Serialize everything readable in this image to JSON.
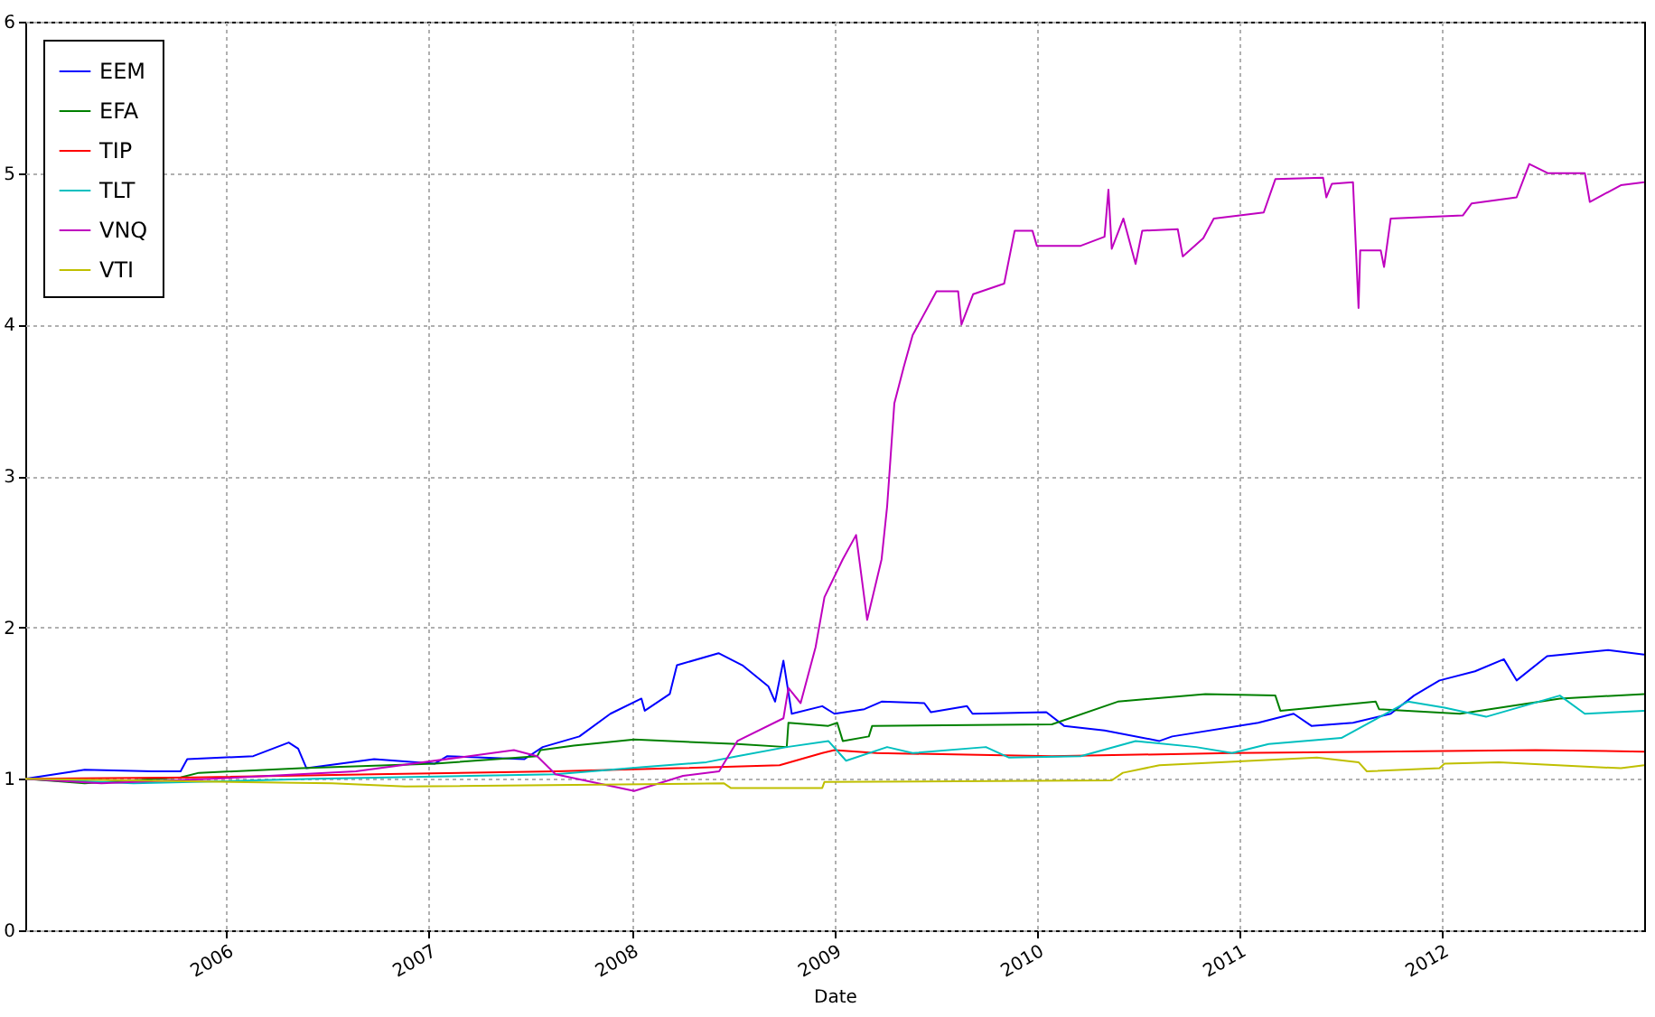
{
  "chart_data": {
    "type": "line",
    "xlabel": "Date",
    "xlim": [
      "2005-01-03",
      "2012-12-31"
    ],
    "xticks": [
      "2006",
      "2007",
      "2008",
      "2009",
      "2010",
      "2011",
      "2012"
    ],
    "ylim": [
      0,
      6
    ],
    "yticks": [
      0,
      1,
      2,
      3,
      4,
      5,
      6
    ],
    "grid": true,
    "legend": "top left",
    "line_style": "solid",
    "series": [
      {
        "name": "EEM",
        "color": "#0000ff",
        "x": [
          "2005-01-03",
          "2005-04-20",
          "2005-08-20",
          "2005-10-10",
          "2005-10-22",
          "2006-02-18",
          "2006-04-23",
          "2006-05-10",
          "2006-05-25",
          "2006-09-24",
          "2007-01-11",
          "2007-02-03",
          "2007-06-22",
          "2007-07-25",
          "2007-09-29",
          "2007-11-24",
          "2008-01-19",
          "2008-01-25",
          "2008-03-10",
          "2008-03-23",
          "2008-06-06",
          "2008-07-19",
          "2008-09-04",
          "2008-09-16",
          "2008-10-01",
          "2008-10-16",
          "2008-12-10",
          "2009-01-01",
          "2009-02-24",
          "2009-03-27",
          "2009-06-12",
          "2009-06-24",
          "2009-08-28",
          "2009-09-07",
          "2010-01-18",
          "2010-02-19",
          "2010-05-03",
          "2010-08-10",
          "2010-09-02",
          "2011-02-04",
          "2011-04-09",
          "2011-05-11",
          "2011-07-25",
          "2011-10-01",
          "2011-11-12",
          "2011-12-28",
          "2012-03-01",
          "2012-04-22",
          "2012-05-15",
          "2012-07-09",
          "2012-10-27",
          "2012-12-31"
        ],
        "values": [
          1.0,
          1.06,
          1.05,
          1.05,
          1.13,
          1.15,
          1.24,
          1.2,
          1.07,
          1.13,
          1.1,
          1.15,
          1.13,
          1.21,
          1.28,
          1.43,
          1.53,
          1.45,
          1.56,
          1.75,
          1.83,
          1.75,
          1.61,
          1.51,
          1.78,
          1.43,
          1.48,
          1.43,
          1.46,
          1.51,
          1.5,
          1.44,
          1.48,
          1.43,
          1.44,
          1.35,
          1.32,
          1.25,
          1.28,
          1.37,
          1.43,
          1.35,
          1.37,
          1.43,
          1.55,
          1.65,
          1.71,
          1.79,
          1.65,
          1.81,
          1.85,
          1.82
        ]
      },
      {
        "name": "EFA",
        "color": "#008000",
        "x": [
          "2005-01-03",
          "2005-04-20",
          "2005-10-10",
          "2005-11-12",
          "2006-05-16",
          "2007-01-11",
          "2007-07-15",
          "2007-07-21",
          "2007-09-19",
          "2008-01-06",
          "2008-07-10",
          "2008-10-07",
          "2008-10-10",
          "2008-12-21",
          "2009-01-06",
          "2009-01-16",
          "2009-03-04",
          "2009-03-10",
          "2010-01-28",
          "2010-05-27",
          "2010-11-01",
          "2011-03-07",
          "2011-03-16",
          "2011-09-04",
          "2011-09-10",
          "2012-02-03",
          "2012-08-01",
          "2012-12-31"
        ],
        "values": [
          1.0,
          0.97,
          1.01,
          1.04,
          1.07,
          1.1,
          1.15,
          1.19,
          1.22,
          1.26,
          1.23,
          1.21,
          1.37,
          1.35,
          1.37,
          1.25,
          1.28,
          1.35,
          1.36,
          1.51,
          1.56,
          1.55,
          1.45,
          1.51,
          1.46,
          1.43,
          1.53,
          1.56
        ]
      },
      {
        "name": "TIP",
        "color": "#ff0000",
        "x": [
          "2005-01-03",
          "2005-11-04",
          "2006-09-24",
          "2007-08-17",
          "2008-03-23",
          "2008-09-24",
          "2008-12-10",
          "2009-01-01",
          "2009-03-18",
          "2010-01-28",
          "2010-12-19",
          "2012-06-18",
          "2012-12-31"
        ],
        "values": [
          1.0,
          1.01,
          1.03,
          1.05,
          1.07,
          1.09,
          1.17,
          1.19,
          1.17,
          1.15,
          1.17,
          1.19,
          1.18
        ]
      },
      {
        "name": "TLT",
        "color": "#00bfbf",
        "x": [
          "2005-01-03",
          "2005-07-17",
          "2006-06-09",
          "2007-08-17",
          "2008-01-28",
          "2008-05-15",
          "2008-07-10",
          "2008-10-07",
          "2008-12-21",
          "2009-01-22",
          "2009-04-06",
          "2009-05-22",
          "2009-10-01",
          "2009-11-12",
          "2010-03-21",
          "2010-06-28",
          "2010-10-15",
          "2010-12-19",
          "2011-02-23",
          "2011-07-04",
          "2011-11-01",
          "2012-01-06",
          "2012-03-21",
          "2012-08-01",
          "2012-09-15",
          "2012-12-31"
        ],
        "values": [
          1.0,
          0.97,
          1.0,
          1.03,
          1.08,
          1.11,
          1.15,
          1.21,
          1.25,
          1.12,
          1.21,
          1.17,
          1.21,
          1.14,
          1.15,
          1.25,
          1.21,
          1.17,
          1.23,
          1.27,
          1.51,
          1.47,
          1.41,
          1.55,
          1.43,
          1.45
        ]
      },
      {
        "name": "VNQ",
        "color": "#bf00bf",
        "x": [
          "2005-01-03",
          "2005-05-20",
          "2005-12-05",
          "2006-08-22",
          "2007-06-03",
          "2007-07-15",
          "2007-08-17",
          "2008-01-06",
          "2008-04-03",
          "2008-06-07",
          "2008-07-10",
          "2008-10-01",
          "2008-10-10",
          "2008-11-01",
          "2008-11-28",
          "2008-12-14",
          "2009-01-16",
          "2009-02-09",
          "2009-03-01",
          "2009-03-27",
          "2009-04-06",
          "2009-04-19",
          "2009-05-06",
          "2009-05-22",
          "2009-07-04",
          "2009-08-12",
          "2009-08-18",
          "2009-09-08",
          "2009-11-03",
          "2009-11-22",
          "2009-12-24",
          "2010-01-01",
          "2010-03-21",
          "2010-05-03",
          "2010-05-10",
          "2010-05-16",
          "2010-06-06",
          "2010-06-28",
          "2010-07-10",
          "2010-09-12",
          "2010-09-21",
          "2010-10-28",
          "2010-11-16",
          "2011-02-14",
          "2011-03-07",
          "2011-06-01",
          "2011-06-07",
          "2011-06-17",
          "2011-07-25",
          "2011-08-04",
          "2011-08-07",
          "2011-09-13",
          "2011-09-19",
          "2011-10-01",
          "2012-02-08",
          "2012-02-24",
          "2012-05-15",
          "2012-06-07",
          "2012-07-10",
          "2012-09-15",
          "2012-09-24",
          "2012-11-19",
          "2012-12-31"
        ],
        "values": [
          1.0,
          0.97,
          1.0,
          1.05,
          1.19,
          1.15,
          1.03,
          0.92,
          1.02,
          1.05,
          1.25,
          1.4,
          1.6,
          1.5,
          1.87,
          2.2,
          2.45,
          2.61,
          2.05,
          2.45,
          2.8,
          3.48,
          3.72,
          3.93,
          4.22,
          4.22,
          4.0,
          4.2,
          4.27,
          4.62,
          4.62,
          4.52,
          4.52,
          4.58,
          4.89,
          4.5,
          4.7,
          4.4,
          4.62,
          4.63,
          4.45,
          4.57,
          4.7,
          4.74,
          4.96,
          4.97,
          4.84,
          4.93,
          4.94,
          4.11,
          4.49,
          4.49,
          4.38,
          4.7,
          4.72,
          4.8,
          4.84,
          5.06,
          5.0,
          5.0,
          4.81,
          4.92,
          4.94
        ]
      },
      {
        "name": "VTI",
        "color": "#bfbf00",
        "x": [
          "2005-01-03",
          "2006-07-10",
          "2006-11-19",
          "2008-06-16",
          "2008-06-28",
          "2008-12-10",
          "2008-12-14",
          "2010-05-16",
          "2010-06-05",
          "2010-08-10",
          "2011-05-21",
          "2011-08-04",
          "2011-08-19",
          "2011-12-28",
          "2012-01-06",
          "2012-04-13",
          "2012-11-19",
          "2012-12-31"
        ],
        "values": [
          1.0,
          0.97,
          0.95,
          0.97,
          0.94,
          0.94,
          0.98,
          0.99,
          1.04,
          1.09,
          1.14,
          1.11,
          1.05,
          1.07,
          1.1,
          1.11,
          1.07,
          1.09
        ]
      }
    ]
  }
}
